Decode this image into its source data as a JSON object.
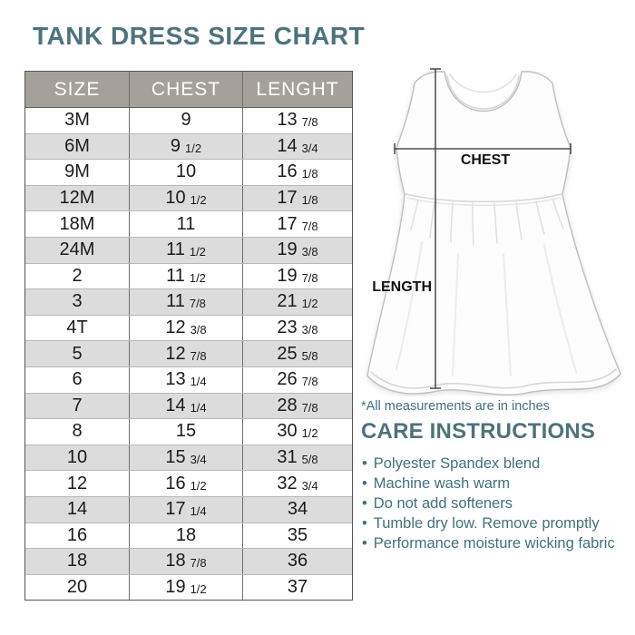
{
  "title": "TANK DRESS SIZE CHART",
  "note": "*All measurements are in inches",
  "colors": {
    "accent_teal": "#4e737d",
    "body_text_teal": "#41707f",
    "header_bg": "#a5a09a",
    "row_alt": "#dcdcdc",
    "table_border": "#555555",
    "measure_line": "#2f2f2f"
  },
  "table": {
    "headers": [
      "SIZE",
      "CHEST",
      "LENGHT"
    ],
    "rows": [
      {
        "size": "3M",
        "chest": [
          "9",
          ""
        ],
        "length": [
          "13",
          "7/8"
        ]
      },
      {
        "size": "6M",
        "chest": [
          "9",
          "1/2"
        ],
        "length": [
          "14",
          "3/4"
        ]
      },
      {
        "size": "9M",
        "chest": [
          "10",
          ""
        ],
        "length": [
          "16",
          "1/8"
        ]
      },
      {
        "size": "12M",
        "chest": [
          "10",
          "1/2"
        ],
        "length": [
          "17",
          "1/8"
        ]
      },
      {
        "size": "18M",
        "chest": [
          "11",
          ""
        ],
        "length": [
          "17",
          "7/8"
        ]
      },
      {
        "size": "24M",
        "chest": [
          "11",
          "1/2"
        ],
        "length": [
          "19",
          "3/8"
        ]
      },
      {
        "size": "2",
        "chest": [
          "11",
          "1/2"
        ],
        "length": [
          "19",
          "7/8"
        ]
      },
      {
        "size": "3",
        "chest": [
          "11",
          "7/8"
        ],
        "length": [
          "21",
          "1/2"
        ]
      },
      {
        "size": "4T",
        "chest": [
          "12",
          "3/8"
        ],
        "length": [
          "23",
          "3/8"
        ]
      },
      {
        "size": "5",
        "chest": [
          "12",
          "7/8"
        ],
        "length": [
          "25",
          "5/8"
        ]
      },
      {
        "size": "6",
        "chest": [
          "13",
          "1/4"
        ],
        "length": [
          "26",
          "7/8"
        ]
      },
      {
        "size": "7",
        "chest": [
          "14",
          "1/4"
        ],
        "length": [
          "28",
          "7/8"
        ]
      },
      {
        "size": "8",
        "chest": [
          "15",
          ""
        ],
        "length": [
          "30",
          "1/2"
        ]
      },
      {
        "size": "10",
        "chest": [
          "15",
          "3/4"
        ],
        "length": [
          "31",
          "5/8"
        ]
      },
      {
        "size": "12",
        "chest": [
          "16",
          "1/2"
        ],
        "length": [
          "32",
          "3/4"
        ]
      },
      {
        "size": "14",
        "chest": [
          "17",
          "1/4"
        ],
        "length": [
          "34",
          ""
        ]
      },
      {
        "size": "16",
        "chest": [
          "18",
          ""
        ],
        "length": [
          "35",
          ""
        ]
      },
      {
        "size": "18",
        "chest": [
          "18",
          "7/8"
        ],
        "length": [
          "36",
          ""
        ]
      },
      {
        "size": "20",
        "chest": [
          "19",
          "1/2"
        ],
        "length": [
          "37",
          ""
        ]
      }
    ]
  },
  "diagram": {
    "chest_label": "CHEST",
    "length_label": "LENGTH"
  },
  "care": {
    "title": "CARE INSTRUCTIONS",
    "items": [
      "Polyester Spandex blend",
      "Machine wash warm",
      "Do not add softeners",
      "Tumble dry low. Remove promptly",
      "Performance moisture wicking fabric"
    ]
  }
}
